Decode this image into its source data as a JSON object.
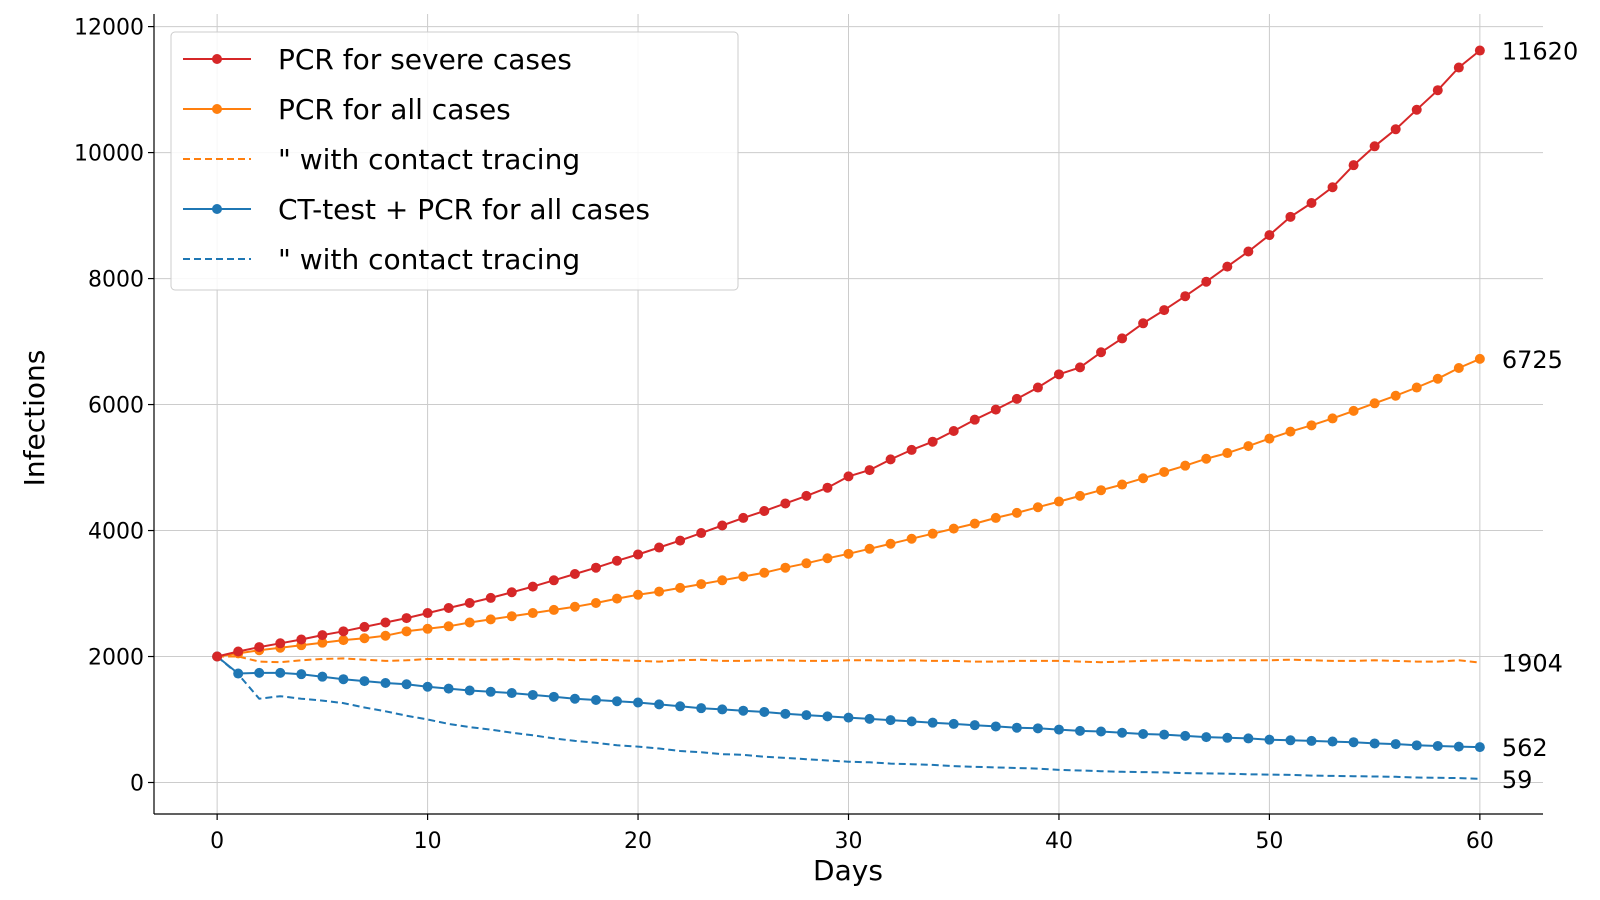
{
  "chart_data": {
    "type": "line",
    "title": "",
    "xlabel": "Days",
    "ylabel": "Infections",
    "xlim": [
      -3,
      63
    ],
    "ylim": [
      -500,
      12200
    ],
    "xticks": [
      0,
      10,
      20,
      30,
      40,
      50,
      60
    ],
    "yticks": [
      0,
      2000,
      4000,
      6000,
      8000,
      10000,
      12000
    ],
    "grid": true,
    "legend_position": "top-left",
    "x": [
      0,
      1,
      2,
      3,
      4,
      5,
      6,
      7,
      8,
      9,
      10,
      11,
      12,
      13,
      14,
      15,
      16,
      17,
      18,
      19,
      20,
      21,
      22,
      23,
      24,
      25,
      26,
      27,
      28,
      29,
      30,
      31,
      32,
      33,
      34,
      35,
      36,
      37,
      38,
      39,
      40,
      41,
      42,
      43,
      44,
      45,
      46,
      47,
      48,
      49,
      50,
      51,
      52,
      53,
      54,
      55,
      56,
      57,
      58,
      59,
      60
    ],
    "series": [
      {
        "name": "PCR for severe cases",
        "color": "#d62728",
        "style": "solid",
        "markers": true,
        "end_label": "11620",
        "values": [
          2000,
          2080,
          2150,
          2210,
          2270,
          2340,
          2400,
          2470,
          2540,
          2610,
          2690,
          2770,
          2850,
          2930,
          3020,
          3110,
          3210,
          3310,
          3410,
          3520,
          3620,
          3730,
          3840,
          3960,
          4080,
          4200,
          4310,
          4430,
          4550,
          4680,
          4860,
          4960,
          5130,
          5280,
          5410,
          5580,
          5760,
          5920,
          6090,
          6270,
          6480,
          6590,
          6830,
          7050,
          7290,
          7500,
          7720,
          7950,
          8190,
          8430,
          8690,
          8980,
          9200,
          9450,
          9800,
          10100,
          10370,
          10680,
          10990,
          11350,
          11620
        ]
      },
      {
        "name": "PCR for all cases",
        "color": "#ff7f0e",
        "style": "solid",
        "markers": true,
        "end_label": "6725",
        "values": [
          2000,
          2050,
          2100,
          2140,
          2180,
          2220,
          2260,
          2290,
          2330,
          2400,
          2440,
          2480,
          2540,
          2590,
          2640,
          2690,
          2740,
          2790,
          2850,
          2920,
          2980,
          3030,
          3090,
          3150,
          3210,
          3270,
          3330,
          3410,
          3480,
          3560,
          3630,
          3710,
          3790,
          3870,
          3950,
          4030,
          4110,
          4200,
          4280,
          4370,
          4460,
          4550,
          4640,
          4730,
          4830,
          4930,
          5030,
          5140,
          5230,
          5340,
          5460,
          5570,
          5670,
          5780,
          5900,
          6020,
          6140,
          6270,
          6410,
          6580,
          6725
        ]
      },
      {
        "name": "\" with contact tracing",
        "color": "#ff7f0e",
        "style": "dashed",
        "markers": false,
        "end_label": "1904",
        "values": [
          2000,
          2000,
          1920,
          1910,
          1940,
          1960,
          1970,
          1950,
          1930,
          1940,
          1960,
          1960,
          1950,
          1950,
          1960,
          1950,
          1960,
          1940,
          1950,
          1940,
          1930,
          1920,
          1940,
          1950,
          1930,
          1930,
          1940,
          1940,
          1930,
          1930,
          1940,
          1940,
          1930,
          1940,
          1930,
          1930,
          1920,
          1920,
          1930,
          1930,
          1930,
          1920,
          1910,
          1920,
          1930,
          1940,
          1940,
          1930,
          1940,
          1940,
          1940,
          1950,
          1940,
          1930,
          1930,
          1940,
          1930,
          1920,
          1920,
          1940,
          1904
        ]
      },
      {
        "name": "CT-test + PCR for all cases",
        "color": "#1f77b4",
        "style": "solid",
        "markers": true,
        "end_label": "562",
        "values": [
          2000,
          1730,
          1740,
          1740,
          1720,
          1680,
          1640,
          1610,
          1580,
          1560,
          1520,
          1490,
          1460,
          1440,
          1420,
          1390,
          1360,
          1330,
          1310,
          1290,
          1270,
          1240,
          1210,
          1180,
          1160,
          1140,
          1120,
          1090,
          1070,
          1050,
          1030,
          1010,
          990,
          970,
          950,
          930,
          910,
          890,
          870,
          860,
          840,
          820,
          810,
          790,
          770,
          760,
          740,
          720,
          710,
          700,
          680,
          670,
          660,
          650,
          640,
          620,
          610,
          590,
          580,
          570,
          562
        ]
      },
      {
        "name": "\" with contact tracing",
        "color": "#1f77b4",
        "style": "dashed",
        "markers": false,
        "end_label": "59",
        "values": [
          2000,
          1720,
          1330,
          1370,
          1330,
          1300,
          1260,
          1190,
          1130,
          1060,
          1000,
          930,
          880,
          840,
          790,
          750,
          700,
          660,
          630,
          590,
          570,
          540,
          500,
          480,
          450,
          440,
          410,
          390,
          370,
          350,
          330,
          320,
          300,
          290,
          280,
          260,
          250,
          240,
          230,
          220,
          200,
          190,
          180,
          170,
          165,
          160,
          150,
          145,
          140,
          130,
          125,
          120,
          110,
          105,
          100,
          95,
          90,
          80,
          75,
          70,
          59
        ]
      }
    ]
  }
}
